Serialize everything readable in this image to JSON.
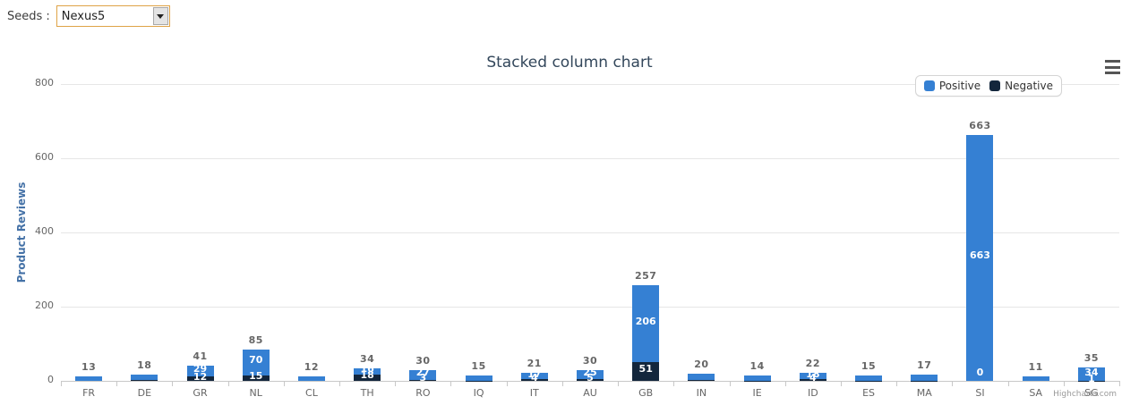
{
  "page": {
    "seeds_label": "Seeds :",
    "seeds_value": "Nexus5"
  },
  "colors": {
    "positive": "#3580d3",
    "negative": "#13263c",
    "grid": "#e6e6e6",
    "axis": "#c8c8c8",
    "tick_label": "#666666",
    "title": "#33475b",
    "y_title": "#4572a7",
    "total_label": "#666666",
    "inner_label": "#ffffff",
    "credit": "#999999",
    "select_border": "#dfa347"
  },
  "icons": {
    "export_menu": "hamburger-menu-icon",
    "select_arrow": "dropdown-arrow-icon"
  },
  "chart_data": {
    "type": "bar",
    "stacked": true,
    "title": "Stacked column chart",
    "xlabel": "",
    "ylabel": "Product Reviews",
    "ylim": [
      0,
      800
    ],
    "yticks": [
      0,
      200,
      400,
      600,
      800
    ],
    "grid": true,
    "legend_position": "top-right",
    "credit": "Highcharts.com",
    "categories": [
      "FR",
      "DE",
      "GR",
      "NL",
      "CL",
      "TH",
      "RO",
      "IQ",
      "IT",
      "AU",
      "GB",
      "IN",
      "IE",
      "ID",
      "ES",
      "MA",
      "SI",
      "SA",
      "SG"
    ],
    "series": [
      {
        "name": "Positive",
        "color": "#3580d3",
        "values": [
          13,
          16,
          29,
          70,
          12,
          16,
          27,
          14,
          17,
          25,
          206,
          18,
          13,
          18,
          14,
          16,
          663,
          11,
          34
        ]
      },
      {
        "name": "Negative",
        "color": "#13263c",
        "values": [
          0,
          2,
          12,
          15,
          0,
          18,
          3,
          1,
          4,
          5,
          51,
          2,
          1,
          4,
          1,
          1,
          0,
          0,
          1
        ]
      }
    ],
    "totals": [
      13,
      18,
      41,
      85,
      12,
      34,
      30,
      15,
      21,
      30,
      257,
      20,
      14,
      22,
      15,
      17,
      663,
      11,
      35
    ],
    "inner_labels_visible": [
      false,
      false,
      true,
      true,
      false,
      true,
      true,
      false,
      true,
      true,
      true,
      false,
      false,
      true,
      false,
      false,
      true,
      false,
      true
    ]
  }
}
